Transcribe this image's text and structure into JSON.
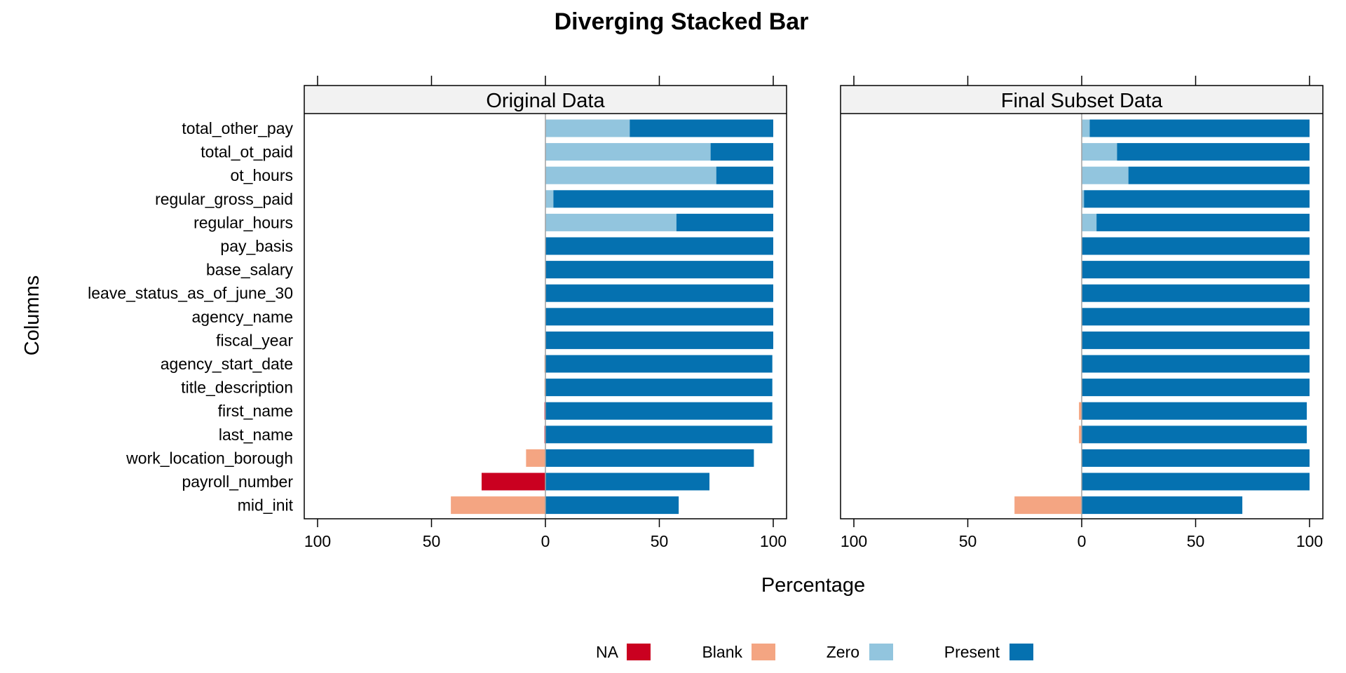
{
  "chart_data": {
    "type": "bar",
    "subtype": "diverging-stacked",
    "title": "Diverging Stacked Bar",
    "xlabel": "Percentage",
    "ylabel": "Columns",
    "xlim": [
      -100,
      100
    ],
    "xticks": [
      -100,
      -50,
      0,
      50,
      100
    ],
    "tick_labels": [
      "100",
      "50",
      "0",
      "50",
      "100"
    ],
    "grid": false,
    "legend_position": "bottom",
    "categories": [
      "total_other_pay",
      "total_ot_paid",
      "ot_hours",
      "regular_gross_paid",
      "regular_hours",
      "pay_basis",
      "base_salary",
      "leave_status_as_of_june_30",
      "agency_name",
      "fiscal_year",
      "agency_start_date",
      "title_description",
      "first_name",
      "last_name",
      "work_location_borough",
      "payroll_number",
      "mid_init"
    ],
    "legend": [
      {
        "name": "NA",
        "color": "#ca0020",
        "side": "negative"
      },
      {
        "name": "Blank",
        "color": "#f4a582",
        "side": "negative"
      },
      {
        "name": "Zero",
        "color": "#92c5de",
        "side": "positive"
      },
      {
        "name": "Present",
        "color": "#0571b0",
        "side": "positive"
      }
    ],
    "panels": [
      {
        "strip": "Original Data",
        "NA": [
          0,
          0,
          0,
          0,
          0,
          0,
          0,
          0,
          0,
          0,
          0,
          0,
          0.4,
          0.4,
          0,
          28,
          0
        ],
        "Blank": [
          0,
          0,
          0,
          0,
          0,
          0,
          0,
          0,
          0,
          0,
          0.4,
          0.4,
          0,
          0,
          8.5,
          0,
          41.5
        ],
        "Zero": [
          37,
          72.5,
          75,
          3.5,
          57.5,
          0,
          0,
          0,
          0,
          0,
          0,
          0,
          0,
          0,
          0,
          0,
          0
        ],
        "Present": [
          63,
          27.5,
          25,
          96.5,
          42.5,
          100,
          100,
          100,
          100,
          100,
          99.6,
          99.6,
          99.6,
          99.6,
          91.5,
          72,
          58.5
        ]
      },
      {
        "strip": "Final Subset Data",
        "NA": [
          0,
          0,
          0,
          0,
          0,
          0,
          0,
          0,
          0,
          0,
          0,
          0,
          0,
          0,
          0,
          0,
          0
        ],
        "Blank": [
          0,
          0,
          0,
          0,
          0,
          0,
          0,
          0,
          0,
          0,
          0,
          0,
          1.2,
          1.2,
          0,
          0,
          29.5
        ],
        "Zero": [
          3.5,
          15.5,
          20.5,
          1,
          6.5,
          0,
          0,
          0,
          0,
          0,
          0,
          0,
          0,
          0,
          0,
          0,
          0
        ],
        "Present": [
          96.5,
          84.5,
          79.5,
          99,
          93.5,
          100,
          100,
          100,
          100,
          100,
          100,
          100,
          98.8,
          98.8,
          100,
          100,
          70.5
        ]
      }
    ]
  }
}
